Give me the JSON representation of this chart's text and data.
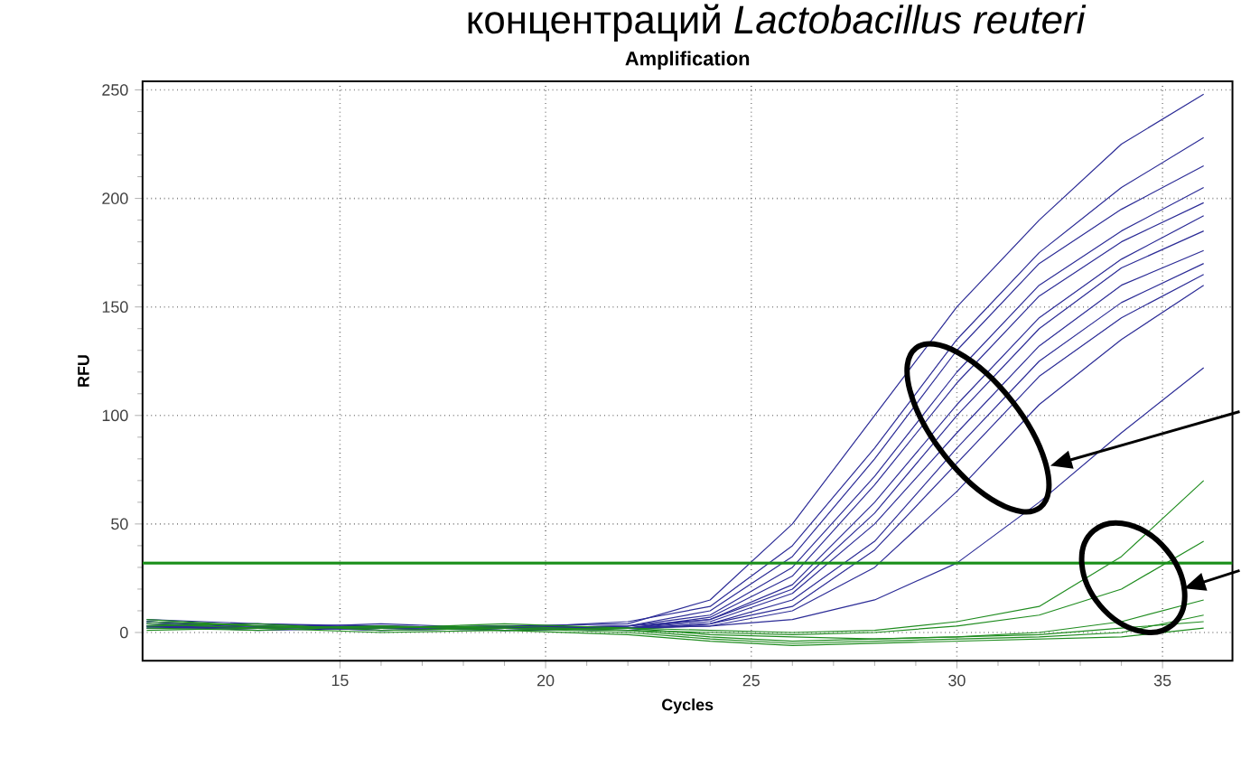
{
  "chart_data": {
    "type": "line",
    "title": "Amplification",
    "xlabel": "Cycles",
    "ylabel": "RFU",
    "annotations": [
      "концентраций *Lactobacillus reuteri*"
    ],
    "x": [
      10.3,
      13,
      16,
      19,
      22,
      24,
      26,
      28,
      30,
      32,
      34,
      36
    ],
    "xlim": [
      10.2,
      36.7
    ],
    "ylim": [
      -13,
      254
    ],
    "xticks": [
      15,
      20,
      25,
      30,
      35
    ],
    "yticks": [
      0,
      50,
      100,
      150,
      200,
      250
    ],
    "grid": true,
    "line_style": "solid",
    "ref_lines": [
      {
        "axis": "y",
        "value": 32,
        "color": "#1a8f1a"
      }
    ],
    "series": [
      {
        "color": "#2b2b96",
        "values": [
          5,
          3,
          2,
          3,
          4,
          15,
          50,
          100,
          150,
          190,
          225,
          248
        ]
      },
      {
        "color": "#2b2b96",
        "values": [
          3,
          2,
          4,
          2,
          5,
          12,
          40,
          85,
          135,
          175,
          205,
          228
        ]
      },
      {
        "color": "#2b2b96",
        "values": [
          6,
          4,
          3,
          2,
          3,
          10,
          35,
          80,
          130,
          170,
          195,
          215
        ]
      },
      {
        "color": "#2b2b96",
        "values": [
          2,
          3,
          1,
          2,
          3,
          8,
          30,
          72,
          120,
          160,
          185,
          205
        ]
      },
      {
        "color": "#2b2b96",
        "values": [
          4,
          2,
          3,
          1,
          2,
          7,
          26,
          68,
          115,
          155,
          180,
          198
        ]
      },
      {
        "color": "#2b2b96",
        "values": [
          5,
          3,
          2,
          3,
          2,
          6,
          22,
          60,
          105,
          145,
          172,
          192
        ]
      },
      {
        "color": "#2b2b96",
        "values": [
          3,
          4,
          2,
          2,
          3,
          6,
          20,
          55,
          100,
          140,
          168,
          185
        ]
      },
      {
        "color": "#2b2b96",
        "values": [
          2,
          2,
          3,
          1,
          2,
          5,
          18,
          50,
          92,
          132,
          160,
          176
        ]
      },
      {
        "color": "#2b2b96",
        "values": [
          4,
          3,
          1,
          2,
          1,
          4,
          15,
          42,
          85,
          125,
          152,
          170
        ]
      },
      {
        "color": "#2b2b96",
        "values": [
          3,
          1,
          2,
          3,
          2,
          4,
          12,
          38,
          78,
          118,
          145,
          165
        ]
      },
      {
        "color": "#2b2b96",
        "values": [
          5,
          2,
          3,
          2,
          2,
          3,
          10,
          30,
          65,
          105,
          135,
          160
        ]
      },
      {
        "color": "#2b2b96",
        "values": [
          3,
          2,
          2,
          1,
          2,
          3,
          6,
          15,
          32,
          60,
          92,
          122
        ]
      },
      {
        "color": "#1f8c1f",
        "values": [
          6,
          3,
          2,
          4,
          2,
          1,
          0,
          1,
          5,
          12,
          35,
          70
        ]
      },
      {
        "color": "#1f8c1f",
        "values": [
          4,
          2,
          3,
          2,
          1,
          0,
          -1,
          0,
          3,
          8,
          20,
          42
        ]
      },
      {
        "color": "#1f8c1f",
        "values": [
          5,
          3,
          2,
          3,
          1,
          -2,
          -4,
          -3,
          -2,
          0,
          5,
          15
        ]
      },
      {
        "color": "#1f8c1f",
        "values": [
          3,
          4,
          1,
          2,
          0,
          -3,
          -5,
          -4,
          -3,
          -2,
          0,
          8
        ]
      },
      {
        "color": "#1f8c1f",
        "values": [
          2,
          1,
          3,
          1,
          2,
          -1,
          -2,
          -3,
          -2,
          -1,
          2,
          5
        ]
      },
      {
        "color": "#1f8c1f",
        "values": [
          1,
          2,
          0,
          1,
          -1,
          -4,
          -6,
          -5,
          -4,
          -3,
          -2,
          2
        ]
      }
    ]
  }
}
